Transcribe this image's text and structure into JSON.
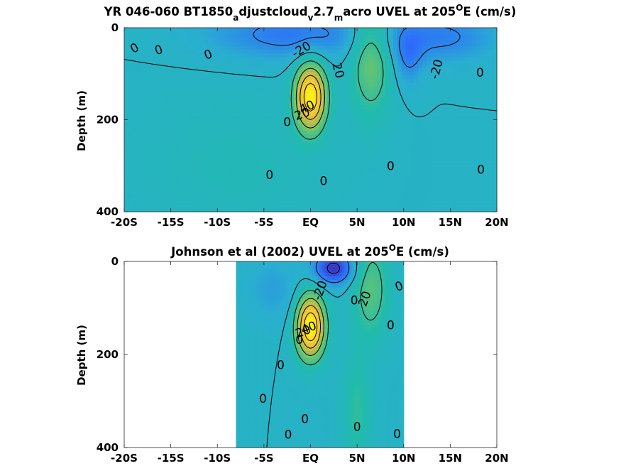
{
  "figure": {
    "colormap": [
      "#3e26a8",
      "#2d6efa",
      "#2aaed1",
      "#21bbac",
      "#74c665",
      "#d7ba43",
      "#fbd02d",
      "#f9fb0e"
    ]
  },
  "chart_data": [
    {
      "type": "heatmap",
      "id": "model",
      "title": {
        "pre": "YR 046-060 BT1850",
        "sub1": "a",
        "mid1": "djustcloud",
        "sub2": "v",
        "mid2": "2.7",
        "sub3": "m",
        "mid3": "acro UVEL at 205",
        "sup": "O",
        "post": "E (cm/s)"
      },
      "ylabel": "Depth (m)",
      "xlim": [
        -20,
        20
      ],
      "ylim": [
        0,
        400
      ],
      "y_reversed": true,
      "xticks": [
        -20,
        -15,
        -10,
        -5,
        0,
        5,
        10,
        15,
        20
      ],
      "xtick_labels": [
        "-20S",
        "-15S",
        "-10S",
        "-5S",
        "EQ",
        "5N",
        "10N",
        "15N",
        "20N"
      ],
      "yticks": [
        0,
        200,
        400
      ],
      "ytick_labels": [
        "0",
        "200",
        "400"
      ],
      "data_coverage": {
        "lat_min": -20,
        "lat_max": 20
      },
      "background_speed": 0,
      "features": [
        {
          "name": "equatorial undercurrent",
          "lat": 0,
          "depth": 150,
          "lat_width": 1.6,
          "depth_width": 70,
          "speed": 95
        },
        {
          "name": "north equatorial countercurrent",
          "lat": 6.5,
          "depth": 60,
          "lat_width": 2.2,
          "depth_width": 130,
          "speed": 35
        },
        {
          "name": "westward surface flow",
          "lat": -2,
          "depth": 15,
          "lat_width": 9,
          "depth_width": 55,
          "speed": -25
        },
        {
          "name": "westward surface flow north",
          "lat": 14,
          "depth": 20,
          "lat_width": 6,
          "depth_width": 55,
          "speed": -22
        },
        {
          "name": "westward flow north of countercurrent",
          "lat": 10.5,
          "depth": 70,
          "lat_width": 1.6,
          "depth_width": 60,
          "speed": -18
        },
        {
          "name": "eastward flow south",
          "lat": -8,
          "depth": 300,
          "lat_width": 10,
          "depth_width": 150,
          "speed": 8
        }
      ],
      "contour_labels": [
        {
          "text": "0",
          "lat": -18.9,
          "depth": 44,
          "angle": -30
        },
        {
          "text": "0",
          "lat": -16.3,
          "depth": 48,
          "angle": -20
        },
        {
          "text": "0",
          "lat": -11.0,
          "depth": 58,
          "angle": -20
        },
        {
          "text": "-20",
          "lat": -1.0,
          "depth": 47,
          "angle": -30
        },
        {
          "text": "20",
          "lat": 3.0,
          "depth": 93,
          "angle": 75
        },
        {
          "text": "-20",
          "lat": 13.5,
          "depth": 90,
          "angle": -75
        },
        {
          "text": "0",
          "lat": 18.2,
          "depth": 97,
          "angle": 0
        },
        {
          "text": "0",
          "lat": -2.5,
          "depth": 205,
          "angle": 0
        },
        {
          "text": "20",
          "lat": -0.9,
          "depth": 187,
          "angle": -20
        },
        {
          "text": "40",
          "lat": -0.4,
          "depth": 172,
          "angle": -25
        },
        {
          "text": "0",
          "lat": -4.4,
          "depth": 320,
          "angle": 0
        },
        {
          "text": "0",
          "lat": 1.4,
          "depth": 333,
          "angle": 0
        },
        {
          "text": "0",
          "lat": 8.6,
          "depth": 300,
          "angle": 0
        },
        {
          "text": "0",
          "lat": 18.3,
          "depth": 308,
          "angle": 0
        }
      ]
    },
    {
      "type": "heatmap",
      "id": "observed",
      "title": {
        "pre": "Johnson et al (2002) UVEL at 205",
        "sup": "O",
        "post": "E (cm/s)"
      },
      "ylabel": "Depth (m)",
      "xlim": [
        -20,
        20
      ],
      "ylim": [
        0,
        400
      ],
      "y_reversed": true,
      "xticks": [
        -20,
        -15,
        -10,
        -5,
        0,
        5,
        10,
        15,
        20
      ],
      "xtick_labels": [
        "-20S",
        "-15S",
        "-10S",
        "-5S",
        "EQ",
        "5N",
        "10N",
        "15N",
        "20N"
      ],
      "yticks": [
        0,
        200,
        400
      ],
      "ytick_labels": [
        "0",
        "200",
        "400"
      ],
      "data_coverage": {
        "lat_min": -8,
        "lat_max": 10
      },
      "background_speed": 0,
      "features": [
        {
          "name": "equatorial undercurrent",
          "lat": 0,
          "depth": 140,
          "lat_width": 1.5,
          "depth_width": 65,
          "speed": 100
        },
        {
          "name": "north equatorial countercurrent",
          "lat": 6.5,
          "depth": 60,
          "lat_width": 2,
          "depth_width": 110,
          "speed": 28
        },
        {
          "name": "westward surface flow",
          "lat": 2.5,
          "depth": 15,
          "lat_width": 2.2,
          "depth_width": 35,
          "speed": -45
        },
        {
          "name": "westward flow south",
          "lat": -4,
          "depth": 60,
          "lat_width": 3,
          "depth_width": 70,
          "speed": -12
        },
        {
          "name": "eastward deep flow",
          "lat": 5,
          "depth": 320,
          "lat_width": 1.5,
          "depth_width": 120,
          "speed": 18
        }
      ],
      "contour_labels": [
        {
          "text": "-20",
          "lat": 1.0,
          "depth": 62,
          "angle": -70
        },
        {
          "text": "0",
          "lat": 4.7,
          "depth": 83,
          "angle": 0
        },
        {
          "text": "20",
          "lat": 5.8,
          "depth": 80,
          "angle": -70
        },
        {
          "text": "0",
          "lat": 9.5,
          "depth": 53,
          "angle": -20
        },
        {
          "text": "0",
          "lat": 8.6,
          "depth": 137,
          "angle": 0
        },
        {
          "text": "0",
          "lat": -1.2,
          "depth": 168,
          "angle": 0
        },
        {
          "text": "20",
          "lat": -0.8,
          "depth": 150,
          "angle": -20
        },
        {
          "text": "40",
          "lat": -0.2,
          "depth": 142,
          "angle": -20
        },
        {
          "text": "0",
          "lat": -3.2,
          "depth": 222,
          "angle": 0
        },
        {
          "text": "0",
          "lat": -5.1,
          "depth": 295,
          "angle": 0
        },
        {
          "text": "0",
          "lat": -0.6,
          "depth": 338,
          "angle": 0
        },
        {
          "text": "0",
          "lat": 5.0,
          "depth": 355,
          "angle": 0
        },
        {
          "text": "0",
          "lat": -2.4,
          "depth": 372,
          "angle": 0
        },
        {
          "text": "0",
          "lat": 9.3,
          "depth": 370,
          "angle": 0
        }
      ]
    }
  ]
}
